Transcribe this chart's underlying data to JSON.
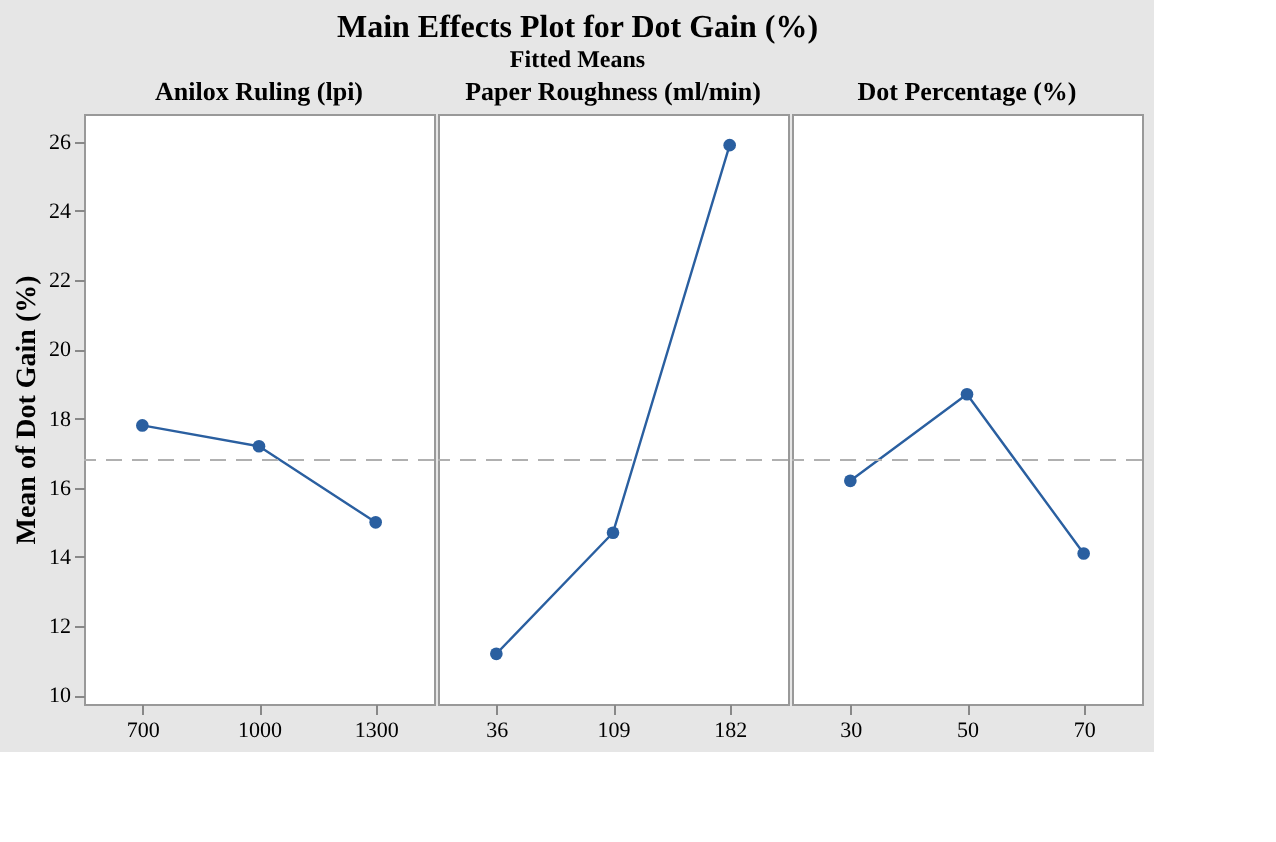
{
  "chart_data": [
    {
      "type": "line",
      "xlabel": "Anilox Ruling (lpi)",
      "ylabel": "Mean of Dot Gain (%)",
      "categories": [
        "700",
        "1000",
        "1300"
      ],
      "series": [
        {
          "color": "#2a5fa0",
          "values": [
            17.8,
            17.2,
            15.0
          ]
        }
      ],
      "ylim": [
        9.75,
        26.8
      ],
      "yticks": [
        10,
        12,
        14,
        16,
        18,
        20,
        22,
        24,
        26
      ],
      "marker": "circle",
      "line_style": "solid",
      "grid": false,
      "ref_lines": [
        {
          "axis": "y",
          "value": 16.8,
          "color": "#b0b0b0",
          "line_style": "dashed"
        }
      ]
    },
    {
      "type": "line",
      "title": "Main Effects Plot for Dot Gain (%)",
      "subtitle": "Fitted Means",
      "xlabel": "Paper Roughness (ml/min)",
      "categories": [
        "36",
        "109",
        "182"
      ],
      "series": [
        {
          "color": "#2a5fa0",
          "values": [
            11.2,
            14.7,
            25.9
          ]
        }
      ],
      "ylim": [
        9.75,
        26.8
      ],
      "tick_labels": "x",
      "marker": "circle",
      "line_style": "solid",
      "grid": false,
      "ref_lines": [
        {
          "axis": "y",
          "value": 16.8,
          "color": "#b0b0b0",
          "line_style": "dashed"
        }
      ]
    },
    {
      "type": "line",
      "xlabel": "Dot Percentage (%)",
      "categories": [
        "30",
        "50",
        "70"
      ],
      "series": [
        {
          "color": "#2a5fa0",
          "values": [
            16.2,
            18.7,
            14.1
          ]
        }
      ],
      "ylim": [
        9.75,
        26.8
      ],
      "tick_labels": "x",
      "marker": "circle",
      "line_style": "solid",
      "grid": false,
      "ref_lines": [
        {
          "axis": "y",
          "value": 16.8,
          "color": "#b0b0b0",
          "line_style": "dashed"
        }
      ]
    }
  ]
}
